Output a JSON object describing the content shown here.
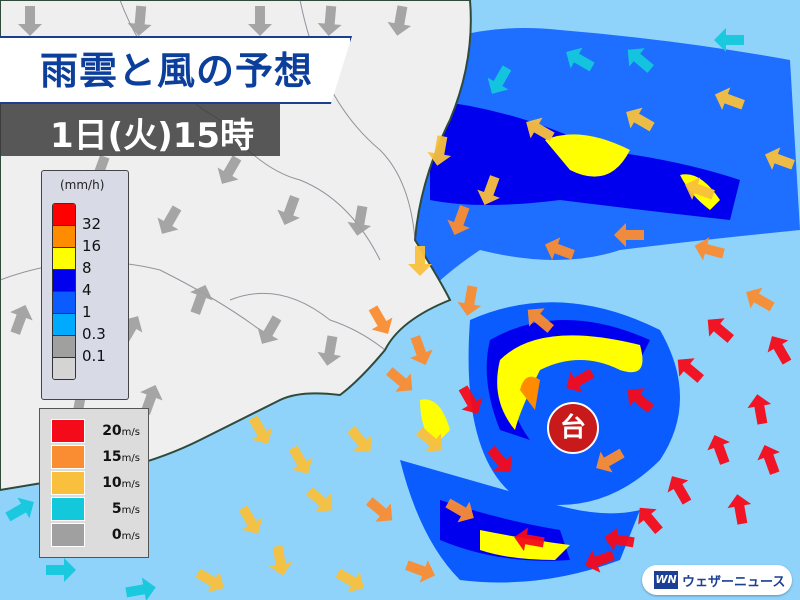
{
  "header": {
    "title": "雨雲と風の予想",
    "time": "1日(火)15時"
  },
  "rain_legend": {
    "unit": "(mm/h)",
    "colors": [
      "#ff0000",
      "#ff8c00",
      "#ffff00",
      "#0000ee",
      "#0a5cff",
      "#00aaff",
      "#a0a0a0",
      "#d4d4d4"
    ],
    "labels": [
      "32",
      "16",
      "8",
      "4",
      "1",
      "0.3",
      "0.1"
    ]
  },
  "wind_legend": {
    "items": [
      {
        "value": "20",
        "unit": "m/s",
        "color": "#f50a19"
      },
      {
        "value": "15",
        "unit": "m/s",
        "color": "#fa8c32"
      },
      {
        "value": "10",
        "unit": "m/s",
        "color": "#f8c03c"
      },
      {
        "value": "5",
        "unit": "m/s",
        "color": "#14c8dc"
      },
      {
        "value": "0",
        "unit": "m/s",
        "color": "#a0a0a0"
      }
    ]
  },
  "typhoon_label": "台",
  "brand": {
    "logo": "WN",
    "name": "ウェザーニュース"
  }
}
